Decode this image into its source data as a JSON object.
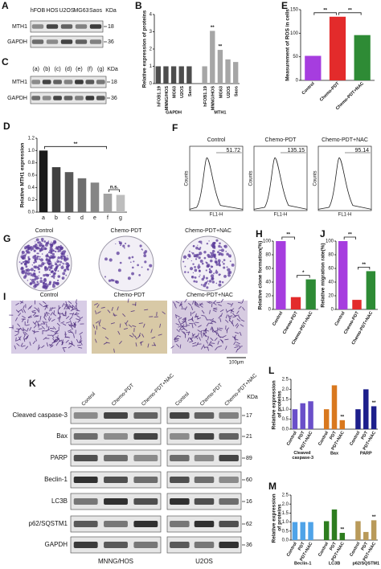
{
  "blot_A": {
    "label": "A",
    "lanes": [
      "hFOB",
      "HOS",
      "U2OS",
      "MG63",
      "Saos"
    ],
    "unit": "KDa",
    "rows": [
      {
        "name": "MTH1",
        "kda": 18
      },
      {
        "name": "GAPDH",
        "kda": 36
      }
    ]
  },
  "blot_C": {
    "label": "C",
    "lanes": [
      "(a)",
      "(b)",
      "(c)",
      "(d)",
      "(e)",
      "(f)",
      "(g)"
    ],
    "unit": "KDa",
    "rows": [
      {
        "name": "MTH1",
        "kda": 18
      },
      {
        "name": "GAPDH",
        "kda": 36
      }
    ]
  },
  "flow_F": {
    "label": "F",
    "ylabel": "Counts",
    "xlabel": "FL1-H",
    "samples": [
      {
        "title": "Control",
        "value": 51.72
      },
      {
        "title": "Chemo-PDT",
        "value": 135.15
      },
      {
        "title": "Chemo-PDT+NAC",
        "value": 95.14
      }
    ]
  },
  "images_G": {
    "label": "G",
    "titles": [
      "Control",
      "Chemo-PDT",
      "Chemo-PDT+NAC"
    ]
  },
  "images_I": {
    "label": "I",
    "titles": [
      "Control",
      "Chemo-PDT",
      "Chemo-PDT+NAC"
    ],
    "scale_bar": "100μm"
  },
  "blot_K": {
    "label": "K",
    "unit": "KDa",
    "lanes": [
      "Control",
      "Chemo-PDT",
      "Chemo-PDT+NAC"
    ],
    "cells": [
      "MNNG/HOS",
      "U2OS"
    ],
    "rows": [
      {
        "name": "Cleaved caspase-3",
        "kda": 17
      },
      {
        "name": "Bax",
        "kda": 21
      },
      {
        "name": "PARP",
        "kda": 89
      },
      {
        "name": "Beclin-1",
        "kda": 60
      },
      {
        "name": "LC3B",
        "kda": 16
      },
      {
        "name": "p62/SQSTM1",
        "kda": 62
      },
      {
        "name": "GAPDH",
        "kda": 36
      }
    ]
  },
  "chart_data": [
    {
      "type": "bar",
      "label": "B",
      "ylabel": "Relative expression of proteins",
      "categories": [
        "hFOB1.19",
        "MNNG/HOS",
        "MG63",
        "U2OS",
        "Saos"
      ],
      "groups": [
        {
          "name": "GAPDH",
          "color": "#4d4d4d",
          "values": [
            1.0,
            1.0,
            1.0,
            1.0,
            1.0
          ]
        },
        {
          "name": "MTH1",
          "color": "#a6a6a6",
          "values": [
            1.0,
            3.05,
            1.95,
            1.4,
            1.25
          ],
          "significance": [
            null,
            "**",
            "**",
            null,
            null
          ]
        }
      ],
      "ylim": [
        0,
        4
      ],
      "yticks": [
        0,
        1,
        2,
        3,
        4
      ]
    },
    {
      "type": "bar",
      "label": "D",
      "ylabel": "Relative MTH1 expression",
      "categories": [
        "a",
        "b",
        "c",
        "d",
        "e",
        "f",
        "g"
      ],
      "values": [
        1.0,
        0.73,
        0.65,
        0.55,
        0.48,
        0.3,
        0.28
      ],
      "colors": [
        "#1a1a1a",
        "#404040",
        "#595959",
        "#6e6e6e",
        "#858585",
        "#a3a3a3",
        "#bdbdbd"
      ],
      "comparisons": [
        {
          "from": "a",
          "to": "f",
          "text": "**"
        },
        {
          "from": "f",
          "to": "g",
          "text": "n.s."
        }
      ],
      "ylim": [
        0,
        1.2
      ],
      "yticks": [
        {
          "value": 0,
          "label": "0.0"
        },
        0.2,
        0.4,
        0.6,
        0.8,
        {
          "value": 1,
          "label": "1.0"
        },
        1.2
      ]
    },
    {
      "type": "bar",
      "label": "E",
      "ylabel": "Measurement of ROS in cells",
      "categories": [
        "Control",
        "Chemo-PDT",
        "Chemo-PDT+NAC"
      ],
      "values": [
        52,
        135,
        96
      ],
      "colors": [
        "#a63ddf",
        "#e32b2b",
        "#2e8b35"
      ],
      "comparisons": [
        {
          "from": "Control",
          "to": "Chemo-PDT",
          "text": "**"
        },
        {
          "from": "Chemo-PDT",
          "to": "Chemo-PDT+NAC",
          "text": "**"
        }
      ],
      "ylim": [
        0,
        150
      ],
      "yticks": [
        0,
        50,
        100,
        150
      ]
    },
    {
      "type": "bar",
      "label": "H",
      "ylabel": "Relative clone formation(%)",
      "categories": [
        "Control",
        "Chemo-PDT",
        "Chemo-PDT+NAC"
      ],
      "values": [
        100,
        18,
        44
      ],
      "colors": [
        "#a63ddf",
        "#e32b2b",
        "#2e8b35"
      ],
      "comparisons": [
        {
          "from": "Control",
          "to": "Chemo-PDT",
          "text": "**"
        },
        {
          "from": "Chemo-PDT",
          "to": "Chemo-PDT+NAC",
          "text": "*"
        }
      ],
      "ylim": [
        0,
        100
      ],
      "yticks": [
        0,
        20,
        40,
        60,
        80,
        100
      ]
    },
    {
      "type": "bar",
      "label": "J",
      "ylabel": "Relative migration rate(%)",
      "categories": [
        "Control",
        "Chemo-PDT",
        "Chemo-PDT+NAC"
      ],
      "values": [
        100,
        14,
        56
      ],
      "colors": [
        "#a63ddf",
        "#e32b2b",
        "#2e8b35"
      ],
      "comparisons": [
        {
          "from": "Control",
          "to": "Chemo-PDT",
          "text": "**"
        },
        {
          "from": "Chemo-PDT",
          "to": "Chemo-PDT+NAC",
          "text": "**"
        }
      ],
      "ylim": [
        0,
        100
      ],
      "yticks": [
        0,
        20,
        40,
        60,
        80,
        100
      ]
    },
    {
      "type": "bar",
      "label": "L",
      "ylabel": "Relative expression of proteins",
      "categories": [
        "Control",
        "PDT",
        "PDT+NAC"
      ],
      "groups": [
        {
          "name": "Cleaved caspase-3",
          "color": "#6a4fc9",
          "values": [
            1.0,
            1.3,
            1.4
          ]
        },
        {
          "name": "Bax",
          "color": "#d9781e",
          "values": [
            1.0,
            2.2,
            0.45
          ],
          "significance": [
            null,
            null,
            "**"
          ]
        },
        {
          "name": "PARP",
          "color": "#1d1f8c",
          "values": [
            1.0,
            2.0,
            1.15
          ],
          "significance": [
            null,
            null,
            "**"
          ]
        }
      ],
      "ylim": [
        0,
        2.5
      ],
      "yticks": [
        {
          "value": 0,
          "label": "0.0"
        },
        0.5,
        {
          "value": 1,
          "label": "1.0"
        },
        1.5,
        {
          "value": 2,
          "label": "2.0"
        },
        2.5
      ]
    },
    {
      "type": "bar",
      "label": "M",
      "ylabel": "Relative expression of proteins",
      "categories": [
        "Control",
        "PDT",
        "PDT+NAC"
      ],
      "groups": [
        {
          "name": "Beclin-1",
          "color": "#4fa3e8",
          "values": [
            1.0,
            1.0,
            1.0
          ]
        },
        {
          "name": "LC3B",
          "color": "#2d7d1f",
          "values": [
            1.05,
            1.7,
            0.4
          ],
          "significance": [
            null,
            null,
            "**"
          ]
        },
        {
          "name": "p62/SQSTM1",
          "color": "#b99a5a",
          "values": [
            1.05,
            0.45,
            1.1
          ],
          "significance": [
            null,
            null,
            "**"
          ]
        }
      ],
      "ylim": [
        0,
        2.5
      ],
      "yticks": [
        {
          "value": 0,
          "label": "0.0"
        },
        0.5,
        {
          "value": 1,
          "label": "1.0"
        },
        1.5,
        {
          "value": 2,
          "label": "2.0"
        },
        2.5
      ]
    }
  ]
}
